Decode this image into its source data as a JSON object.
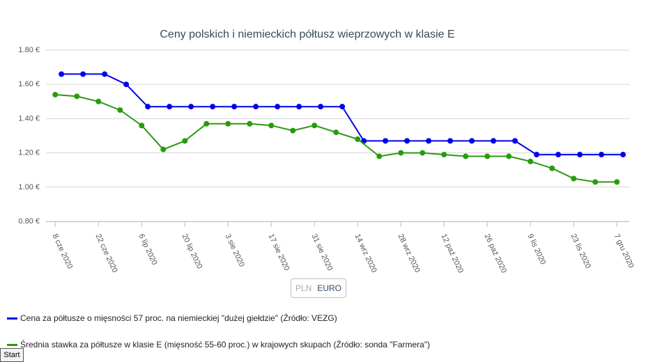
{
  "chart_data": {
    "type": "line",
    "title": "Ceny polskich i niemieckich półtusz wieprzowych w klasie E",
    "xlabel": "",
    "ylabel": "",
    "ylim": [
      0.8,
      1.8
    ],
    "y_ticks": [
      "0.80 €",
      "1.00 €",
      "1.20 €",
      "1.40 €",
      "1.60 €",
      "1.80 €"
    ],
    "y_tick_values": [
      0.8,
      1.0,
      1.2,
      1.4,
      1.6,
      1.8
    ],
    "x_tick_labels": [
      "8 cze 2020",
      "22 cze 2020",
      "6 lip 2020",
      "20 lip 2020",
      "3 sie 2020",
      "17 sie 2020",
      "31 sie 2020",
      "14 wrz 2020",
      "28 wrz 2020",
      "12 paź 2020",
      "26 paź 2020",
      "9 lis 2020",
      "23 lis 2020",
      "7 gru 2020"
    ],
    "grid": true,
    "legend_placement": "bottom-left",
    "series": [
      {
        "name": "Cena za półtusze o mięsności 57 proc. na niemieckiej \"dużej giełdzie\" (Źródło: VEZG)",
        "color": "#0000ee",
        "x": [
          "2020-06-10",
          "2020-06-17",
          "2020-06-24",
          "2020-07-01",
          "2020-07-08",
          "2020-07-15",
          "2020-07-22",
          "2020-07-29",
          "2020-08-05",
          "2020-08-12",
          "2020-08-19",
          "2020-08-26",
          "2020-09-02",
          "2020-09-09",
          "2020-09-16",
          "2020-09-23",
          "2020-09-30",
          "2020-10-07",
          "2020-10-14",
          "2020-10-21",
          "2020-10-28",
          "2020-11-04",
          "2020-11-11",
          "2020-11-18",
          "2020-11-25",
          "2020-12-02",
          "2020-12-09"
        ],
        "values": [
          1.66,
          1.66,
          1.66,
          1.6,
          1.47,
          1.47,
          1.47,
          1.47,
          1.47,
          1.47,
          1.47,
          1.47,
          1.47,
          1.47,
          1.27,
          1.27,
          1.27,
          1.27,
          1.27,
          1.27,
          1.27,
          1.27,
          1.19,
          1.19,
          1.19,
          1.19,
          1.19
        ]
      },
      {
        "name": "Średnia stawka za półtusze w klasie E (mięsność 55-60 proc.) w krajowych skupach (Źródło: sonda \"Farmera\")",
        "color": "#2a9a0e",
        "x": [
          "2020-06-08",
          "2020-06-15",
          "2020-06-22",
          "2020-06-29",
          "2020-07-06",
          "2020-07-13",
          "2020-07-20",
          "2020-07-27",
          "2020-08-03",
          "2020-08-10",
          "2020-08-17",
          "2020-08-24",
          "2020-08-31",
          "2020-09-07",
          "2020-09-14",
          "2020-09-21",
          "2020-09-28",
          "2020-10-05",
          "2020-10-12",
          "2020-10-19",
          "2020-10-26",
          "2020-11-02",
          "2020-11-09",
          "2020-11-16",
          "2020-11-23",
          "2020-11-30",
          "2020-12-07"
        ],
        "values": [
          1.54,
          1.53,
          1.5,
          1.45,
          1.36,
          1.22,
          1.27,
          1.37,
          1.37,
          1.37,
          1.36,
          1.33,
          1.36,
          1.32,
          1.28,
          1.18,
          1.2,
          1.2,
          1.19,
          1.18,
          1.18,
          1.18,
          1.15,
          1.11,
          1.05,
          1.03,
          1.03
        ]
      }
    ]
  },
  "currency_toggle": {
    "option_pln": "PLN",
    "option_euro": "EURO",
    "selected": "EURO"
  },
  "legend": {
    "item_1": "Cena za półtusze o mięsności 57 proc. na niemieckiej \"dużej giełdzie\" (Źródło: VEZG)",
    "item_2": "Średnia stawka za półtusze w klasie E (mięsność 55-60 proc.) w krajowych skupach (Źródło: sonda \"Farmera\")"
  },
  "start_button": {
    "label": "Start"
  }
}
